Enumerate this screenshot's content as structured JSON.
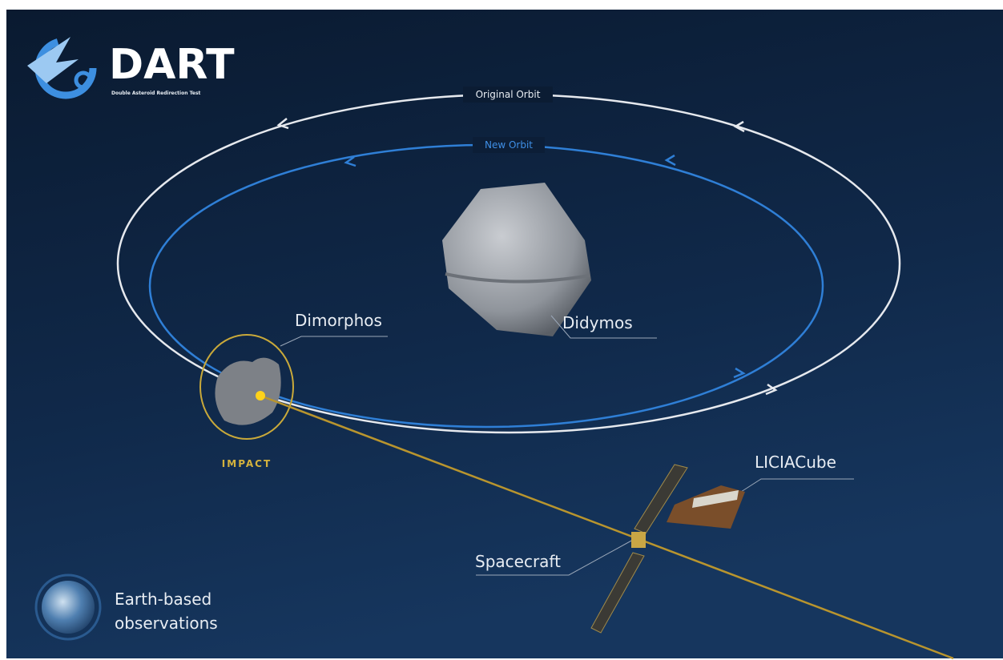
{
  "logo": {
    "title": "DART",
    "subtitle": "Double Asteroid Redirection Test"
  },
  "orbits": {
    "original": "Original Orbit",
    "new": "New Orbit"
  },
  "labels": {
    "dimorphos": "Dimorphos",
    "didymos": "Didymos",
    "impact": "IMPACT",
    "liciacube": "LICIACube",
    "spacecraft": "Spacecraft"
  },
  "earth": {
    "lines": [
      "Earth-based",
      "observations"
    ]
  }
}
